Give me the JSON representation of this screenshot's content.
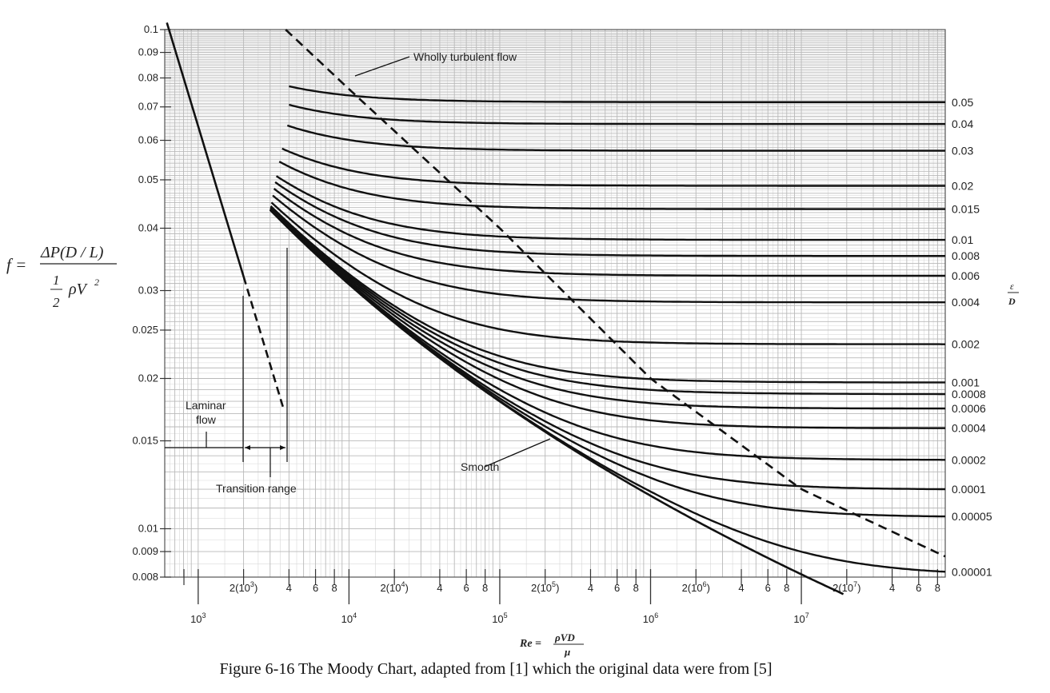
{
  "chart_data": {
    "type": "line",
    "title": "",
    "x_scale": "log",
    "y_scale": "log",
    "xlim": [
      600,
      90000000
    ],
    "ylim": [
      0.008,
      0.1
    ],
    "x_tick_labels": {
      "decade": [
        "10^3",
        "10^4",
        "10^5",
        "10^6",
        "10^7"
      ],
      "minor": [
        "2(10^3)",
        "4",
        "6",
        "8",
        "2(10^4)",
        "4",
        "6",
        "8",
        "2(10^5)",
        "4",
        "6",
        "8",
        "2(10^6)",
        "4",
        "6",
        "8",
        "2(10^7)",
        "4",
        "6",
        "8"
      ]
    },
    "y_tick_labels": [
      "0.1",
      "0.09",
      "0.08",
      "0.07",
      "0.06",
      "0.05",
      "0.04",
      "0.03",
      "0.025",
      "0.02",
      "0.015",
      "0.01",
      "0.009",
      "0.008"
    ],
    "right_axis_title": "ε/D",
    "x_axis_title": "Re = ρVD/μ",
    "y_axis_title": "f = ΔP(D / L) / (½ρV²)",
    "roughness_labels": [
      "0.05",
      "0.04",
      "0.03",
      "0.02",
      "0.015",
      "0.01",
      "0.008",
      "0.006",
      "0.004",
      "0.002",
      "0.001",
      "0.0008",
      "0.0006",
      "0.0004",
      "0.0002",
      "0.0001",
      "0.00005",
      "0.00001"
    ],
    "series": [
      {
        "name": "Laminar flow",
        "x": [
          600,
          2000,
          4000
        ],
        "y": [
          0.1067,
          0.032,
          0.016
        ]
      },
      {
        "name": "Smooth",
        "x": [
          3000,
          10000,
          100000,
          1000000,
          10000000
        ],
        "y": [
          0.0436,
          0.0309,
          0.018,
          0.0117,
          0.0081
        ]
      },
      {
        "name": "Wholly turbulent flow",
        "x": [
          3800,
          10000,
          100000,
          1000000,
          10000000,
          90000000
        ],
        "y": [
          0.1,
          0.076,
          0.04,
          0.02,
          0.012,
          0.0088
        ]
      }
    ],
    "annotations": {
      "laminar": "Laminar flow",
      "transition": "Transition range",
      "smooth": "Smooth",
      "wholly_turbulent": "Wholly turbulent flow"
    }
  },
  "equation": {
    "f_lhs": "f =",
    "numerator": "ΔP(D / L)",
    "half_num": "1",
    "half_den": "2",
    "rho_v2": "ρV",
    "sq": "2"
  },
  "re_label": {
    "lhs": "Re =",
    "num": "ρVD",
    "den": "μ"
  },
  "eps_label": {
    "num": "ε",
    "den": "D"
  },
  "caption": "Figure 6-16 The Moody Chart, adapted from [1] which the original data were from [5]"
}
